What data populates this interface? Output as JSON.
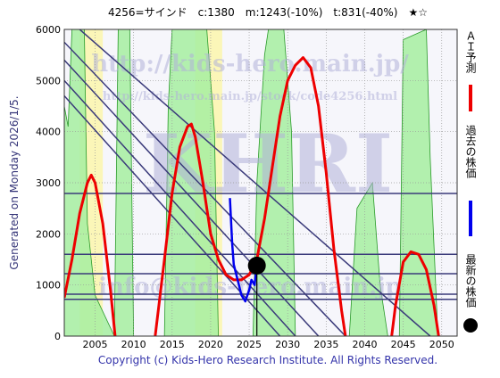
{
  "chart_data": {
    "type": "line",
    "title": "4256=サインド　c:1380　m:1243(-10%)　t:831(-40%)　★☆",
    "side_note": "Generated on Monday 2026/1/5.",
    "footer": "Copyright (c) Kids-Hero Research Institute. All Rights Reserved.",
    "watermarks": [
      "http://kids-hero.main.jp/",
      "http://kids-hero.main.jp/stock/code4256.html",
      "KHRI",
      "info@kids-hero.main.jp"
    ],
    "xlim": [
      2001,
      2052
    ],
    "ylim": [
      0,
      6000
    ],
    "xticks": [
      2005,
      2010,
      2015,
      2020,
      2025,
      2030,
      2035,
      2040,
      2045,
      2050
    ],
    "yticks": [
      0,
      1000,
      2000,
      3000,
      4000,
      5000,
      6000
    ],
    "grid": true,
    "bands": [
      [
        2003,
        2006
      ],
      [
        2018,
        2021.5
      ]
    ],
    "band_color": "#fbf6b8",
    "area": {
      "color": "#a6eea0",
      "x": [
        2001,
        2001.5,
        2002,
        2003.6,
        2004,
        2005,
        2007.5,
        2008,
        2009.5,
        2010,
        2014,
        2014.5,
        2015,
        2019.5,
        2020.5,
        2021,
        2025.5,
        2026,
        2027,
        2027.5,
        2029.5,
        2030.5,
        2031,
        2038,
        2039,
        2041,
        2042,
        2043,
        2044.5,
        2045,
        2048,
        2048.5,
        2049.5,
        2052
      ],
      "values": [
        4500,
        4100,
        6000,
        6000,
        2200,
        800,
        0,
        6000,
        6000,
        0,
        0,
        4500,
        6000,
        6000,
        4000,
        0,
        0,
        3000,
        5500,
        6000,
        6000,
        4000,
        0,
        0,
        2500,
        3000,
        1000,
        0,
        0,
        5800,
        6000,
        3500,
        0,
        0
      ]
    },
    "hlines": [
      2790,
      1600,
      1220,
      820,
      720
    ],
    "hline_color": "#3a3a7a",
    "diagonals": [
      {
        "x": [
          2001,
          2037.5
        ],
        "y": [
          5750,
          0
        ]
      },
      {
        "x": [
          2001,
          2034
        ],
        "y": [
          5400,
          0
        ]
      },
      {
        "x": [
          2001,
          2031
        ],
        "y": [
          5000,
          0
        ]
      },
      {
        "x": [
          2001,
          2029
        ],
        "y": [
          4700,
          0
        ]
      },
      {
        "x": [
          2003,
          2048.5
        ],
        "y": [
          6000,
          0
        ]
      }
    ],
    "series": [
      {
        "name": "ＡＩ予測",
        "color": "#ee0000",
        "x": [
          2001,
          2002,
          2003,
          2004,
          2004.5,
          2005,
          2006,
          2007,
          2007.6,
          2010,
          2012.8,
          2014,
          2015,
          2016,
          2017,
          2017.5,
          2018,
          2019,
          2020,
          2021,
          2022,
          2023,
          2024,
          2025,
          2026,
          2027,
          2028,
          2029,
          2030,
          2031,
          2032,
          2033,
          2034,
          2035,
          2036,
          2037,
          2037.5,
          2040,
          2043.5,
          2044,
          2045,
          2046,
          2047,
          2048,
          2049,
          2049.6
        ],
        "values": [
          750,
          1500,
          2400,
          3000,
          3150,
          3000,
          2200,
          900,
          0,
          null,
          0,
          1500,
          2800,
          3700,
          4100,
          4150,
          3900,
          3000,
          2000,
          1500,
          1200,
          1100,
          1100,
          1200,
          1500,
          2300,
          3300,
          4300,
          5000,
          5300,
          5450,
          5250,
          4500,
          3200,
          1700,
          500,
          0,
          null,
          0,
          600,
          1450,
          1650,
          1600,
          1300,
          600,
          0
        ]
      },
      {
        "name": "過去の株価",
        "color": "#0000ee",
        "x": [
          2022.5,
          2022.8,
          2023,
          2023.5,
          2024,
          2024.5,
          2025,
          2025.3,
          2025.7,
          2026
        ],
        "values": [
          2700,
          1800,
          1400,
          1100,
          800,
          680,
          900,
          1100,
          1000,
          1380
        ]
      },
      {
        "name": "最新の株価",
        "color": "#000000",
        "x": [
          2026
        ],
        "values": [
          1380
        ]
      }
    ]
  }
}
